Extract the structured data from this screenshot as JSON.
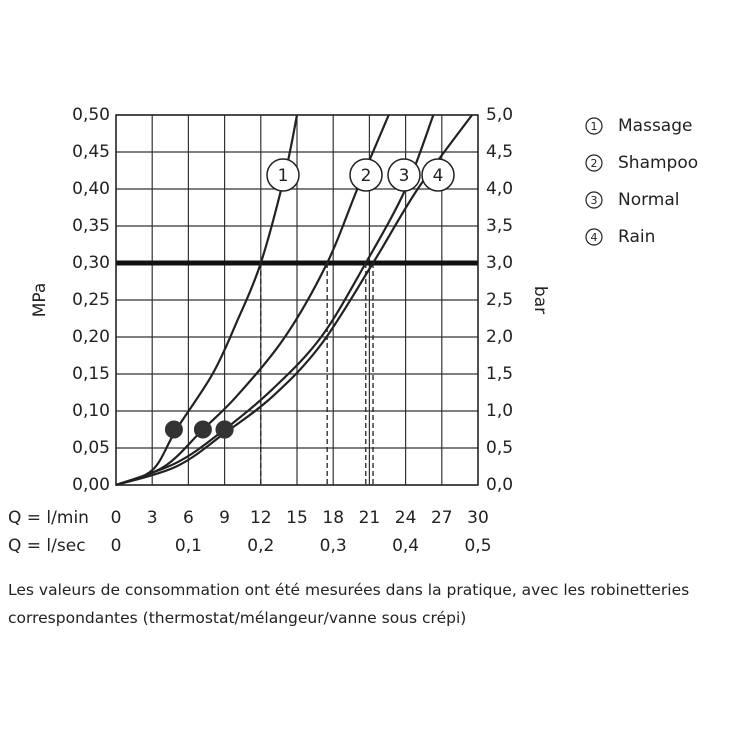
{
  "chart_data": {
    "type": "line",
    "xlabel": "Q = l/min",
    "x2label": "Q = l/sec",
    "ylabel": "MPa",
    "y2label": "bar",
    "xlim": [
      0,
      30
    ],
    "xticks": [
      0,
      3,
      6,
      9,
      12,
      15,
      18,
      21,
      24,
      27,
      30
    ],
    "x2lim": [
      0,
      0.5
    ],
    "x2ticks": [
      0,
      {
        "value": 0.1,
        "label": "0,1"
      },
      {
        "value": 0.2,
        "label": "0,2"
      },
      {
        "value": 0.3,
        "label": "0,3"
      },
      {
        "value": 0.4,
        "label": "0,4"
      },
      {
        "value": 0.5,
        "label": "0,5"
      }
    ],
    "ylim": [
      0,
      0.5
    ],
    "yticks": [
      {
        "value": 0,
        "label": "0,00"
      },
      {
        "value": 0.05,
        "label": "0,05"
      },
      {
        "value": 0.1,
        "label": "0,10"
      },
      {
        "value": 0.15,
        "label": "0,15"
      },
      {
        "value": 0.2,
        "label": "0,20"
      },
      {
        "value": 0.25,
        "label": "0,25"
      },
      {
        "value": 0.3,
        "label": "0,30"
      },
      {
        "value": 0.35,
        "label": "0,35"
      },
      {
        "value": 0.4,
        "label": "0,40"
      },
      {
        "value": 0.45,
        "label": "0,45"
      },
      {
        "value": 0.5,
        "label": "0,50"
      }
    ],
    "y2lim": [
      0,
      5
    ],
    "y2ticks": [
      {
        "value": 0,
        "label": "0,0"
      },
      {
        "value": 0.5,
        "label": "0,5"
      },
      {
        "value": 1,
        "label": "1,0"
      },
      {
        "value": 1.5,
        "label": "1,5"
      },
      {
        "value": 2,
        "label": "2,0"
      },
      {
        "value": 2.5,
        "label": "2,5"
      },
      {
        "value": 3,
        "label": "3,0"
      },
      {
        "value": 3.5,
        "label": "3,5"
      },
      {
        "value": 4,
        "label": "4,0"
      },
      {
        "value": 4.5,
        "label": "4,5"
      },
      {
        "value": 5,
        "label": "5,0"
      }
    ],
    "grid": true,
    "reference_line": 0.3,
    "series": [
      {
        "name": "Massage",
        "number": "1",
        "color": "#222",
        "x": [
          0,
          3,
          5,
          8,
          10,
          12,
          14,
          15
        ],
        "values": [
          0,
          0.02,
          0.075,
          0.15,
          0.22,
          0.3,
          0.42,
          0.5
        ],
        "marker": {
          "x": 4.8,
          "y": 0.075
        },
        "reference_flow": 12
      },
      {
        "name": "Shampoo",
        "number": "2",
        "color": "#222",
        "x": [
          0,
          4,
          7.2,
          10,
          14,
          17.5,
          20,
          22.6
        ],
        "values": [
          0,
          0.025,
          0.075,
          0.12,
          0.2,
          0.3,
          0.4,
          0.5
        ],
        "marker": {
          "x": 7.2,
          "y": 0.075
        },
        "reference_flow": 17.5
      },
      {
        "name": "Normal",
        "number": "3",
        "color": "#222",
        "x": [
          0,
          5,
          9,
          13,
          17,
          20.7,
          24,
          26.3
        ],
        "values": [
          0,
          0.03,
          0.075,
          0.13,
          0.2,
          0.3,
          0.4,
          0.5
        ],
        "marker": {
          "x": 9,
          "y": 0.075
        },
        "reference_flow": 20.7
      },
      {
        "name": "Rain",
        "number": "4",
        "color": "#222",
        "x": [
          0,
          5,
          9,
          13,
          17,
          21.3,
          25,
          29.5
        ],
        "values": [
          0,
          0.025,
          0.07,
          0.12,
          0.19,
          0.3,
          0.4,
          0.5
        ],
        "marker": {
          "x": 9,
          "y": 0.075
        },
        "reference_flow": 21.3
      }
    ],
    "note": "Les valeurs de consommation ont été mesurées dans la pratique, avec les robinetteries correspondantes (thermostat/mélangeur/vanne sous crépi)"
  }
}
